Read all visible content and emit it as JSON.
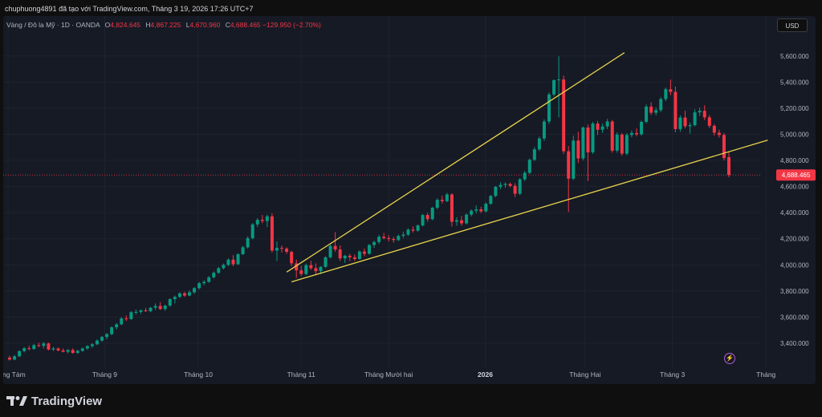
{
  "header": {
    "text": "chuphuong4891 đã tạo với TradingView.com, Tháng 3 19, 2026 17:26 UTC+7"
  },
  "legend": {
    "symbol": "Vàng / Đô la Mỹ · 1D · OANDA",
    "o_label": "O",
    "o_value": "4,824.645",
    "h_label": "H",
    "h_value": "4,867.225",
    "l_label": "L",
    "l_value": "4,670.960",
    "c_label": "C",
    "c_value": "4,688.465",
    "change": "−129.950 (−2.70%)"
  },
  "toolbar": {
    "currency": "USD"
  },
  "footer": {
    "brand": "TradingView"
  },
  "colors": {
    "up": "#089981",
    "down": "#f23645",
    "trendline": "#e8d44d",
    "price_line": "#f23645"
  },
  "chart_data": {
    "type": "candlestick",
    "title": "Vàng / Đô la Mỹ · 1D · OANDA",
    "y_range": [
      3265,
      5660
    ],
    "y_ticks": [
      3400,
      3600,
      3800,
      4000,
      4200,
      4400,
      4600,
      4800,
      5000,
      5200,
      5400,
      5600
    ],
    "y_tick_labels": [
      "3,400.000",
      "3,600.000",
      "3,800.000",
      "4,000.000",
      "4,200.000",
      "4,400.000",
      "4,600.000",
      "4,800.000",
      "5,000.000",
      "5,200.000",
      "5,400.000",
      "5,600.000"
    ],
    "x_labels": [
      {
        "text": "Tháng Tám",
        "at": "2025-08-01",
        "bold": false
      },
      {
        "text": "Tháng 9",
        "at": "2025-09-01",
        "bold": false
      },
      {
        "text": "Tháng 10",
        "at": "2025-10-01",
        "bold": false
      },
      {
        "text": "Tháng 11",
        "at": "2025-11-03",
        "bold": false
      },
      {
        "text": "Tháng Mười hai",
        "at": "2025-12-01",
        "bold": false
      },
      {
        "text": "2026",
        "at": "2026-01-01",
        "bold": true
      },
      {
        "text": "Tháng Hai",
        "at": "2026-02-02",
        "bold": false
      },
      {
        "text": "Tháng 3",
        "at": "2026-03-02",
        "bold": false
      },
      {
        "text": "Tháng",
        "at": "2026-04-01",
        "bold": false
      }
    ],
    "x_range": [
      "2025-08-01",
      "2026-04-03"
    ],
    "current_price": 4688.465,
    "current_price_label": "4,688.465",
    "candles": [
      {
        "o": 3290,
        "h": 3305,
        "l": 3268,
        "c": 3275
      },
      {
        "o": 3275,
        "h": 3310,
        "l": 3270,
        "c": 3300
      },
      {
        "o": 3300,
        "h": 3345,
        "l": 3295,
        "c": 3340
      },
      {
        "o": 3340,
        "h": 3370,
        "l": 3330,
        "c": 3362
      },
      {
        "o": 3362,
        "h": 3380,
        "l": 3345,
        "c": 3356
      },
      {
        "o": 3356,
        "h": 3395,
        "l": 3350,
        "c": 3385
      },
      {
        "o": 3385,
        "h": 3405,
        "l": 3370,
        "c": 3380
      },
      {
        "o": 3380,
        "h": 3410,
        "l": 3360,
        "c": 3398
      },
      {
        "o": 3398,
        "h": 3405,
        "l": 3345,
        "c": 3352
      },
      {
        "o": 3352,
        "h": 3372,
        "l": 3340,
        "c": 3360
      },
      {
        "o": 3360,
        "h": 3368,
        "l": 3338,
        "c": 3345
      },
      {
        "o": 3345,
        "h": 3360,
        "l": 3330,
        "c": 3335
      },
      {
        "o": 3335,
        "h": 3355,
        "l": 3322,
        "c": 3348
      },
      {
        "o": 3348,
        "h": 3360,
        "l": 3320,
        "c": 3326
      },
      {
        "o": 3326,
        "h": 3350,
        "l": 3318,
        "c": 3342
      },
      {
        "o": 3342,
        "h": 3368,
        "l": 3335,
        "c": 3360
      },
      {
        "o": 3360,
        "h": 3385,
        "l": 3350,
        "c": 3378
      },
      {
        "o": 3378,
        "h": 3400,
        "l": 3365,
        "c": 3392
      },
      {
        "o": 3392,
        "h": 3430,
        "l": 3385,
        "c": 3420
      },
      {
        "o": 3420,
        "h": 3455,
        "l": 3412,
        "c": 3448
      },
      {
        "o": 3448,
        "h": 3478,
        "l": 3430,
        "c": 3470
      },
      {
        "o": 3470,
        "h": 3530,
        "l": 3462,
        "c": 3522
      },
      {
        "o": 3522,
        "h": 3555,
        "l": 3505,
        "c": 3545
      },
      {
        "o": 3545,
        "h": 3600,
        "l": 3538,
        "c": 3590
      },
      {
        "o": 3590,
        "h": 3612,
        "l": 3570,
        "c": 3585
      },
      {
        "o": 3585,
        "h": 3645,
        "l": 3580,
        "c": 3638
      },
      {
        "o": 3638,
        "h": 3658,
        "l": 3620,
        "c": 3640
      },
      {
        "o": 3640,
        "h": 3660,
        "l": 3625,
        "c": 3652
      },
      {
        "o": 3652,
        "h": 3670,
        "l": 3640,
        "c": 3645
      },
      {
        "o": 3645,
        "h": 3678,
        "l": 3638,
        "c": 3672
      },
      {
        "o": 3672,
        "h": 3705,
        "l": 3655,
        "c": 3685
      },
      {
        "o": 3685,
        "h": 3715,
        "l": 3655,
        "c": 3662
      },
      {
        "o": 3662,
        "h": 3695,
        "l": 3648,
        "c": 3688
      },
      {
        "o": 3688,
        "h": 3745,
        "l": 3680,
        "c": 3738
      },
      {
        "o": 3738,
        "h": 3765,
        "l": 3705,
        "c": 3755
      },
      {
        "o": 3755,
        "h": 3790,
        "l": 3745,
        "c": 3782
      },
      {
        "o": 3782,
        "h": 3795,
        "l": 3755,
        "c": 3765
      },
      {
        "o": 3765,
        "h": 3805,
        "l": 3760,
        "c": 3790
      },
      {
        "o": 3790,
        "h": 3830,
        "l": 3780,
        "c": 3822
      },
      {
        "o": 3822,
        "h": 3870,
        "l": 3812,
        "c": 3860
      },
      {
        "o": 3860,
        "h": 3882,
        "l": 3845,
        "c": 3870
      },
      {
        "o": 3870,
        "h": 3915,
        "l": 3862,
        "c": 3905
      },
      {
        "o": 3905,
        "h": 3950,
        "l": 3895,
        "c": 3940
      },
      {
        "o": 3940,
        "h": 3985,
        "l": 3930,
        "c": 3975
      },
      {
        "o": 3975,
        "h": 4010,
        "l": 3965,
        "c": 4000
      },
      {
        "o": 4000,
        "h": 4050,
        "l": 3990,
        "c": 4040
      },
      {
        "o": 4040,
        "h": 4075,
        "l": 3990,
        "c": 4005
      },
      {
        "o": 4005,
        "h": 4090,
        "l": 4000,
        "c": 4082
      },
      {
        "o": 4082,
        "h": 4145,
        "l": 4075,
        "c": 4135
      },
      {
        "o": 4135,
        "h": 4218,
        "l": 4125,
        "c": 4205
      },
      {
        "o": 4205,
        "h": 4320,
        "l": 4195,
        "c": 4310
      },
      {
        "o": 4310,
        "h": 4358,
        "l": 4290,
        "c": 4345
      },
      {
        "o": 4345,
        "h": 4382,
        "l": 4320,
        "c": 4336
      },
      {
        "o": 4336,
        "h": 4385,
        "l": 4290,
        "c": 4372
      },
      {
        "o": 4372,
        "h": 4395,
        "l": 4095,
        "c": 4110
      },
      {
        "o": 4110,
        "h": 4180,
        "l": 4030,
        "c": 4130
      },
      {
        "o": 4130,
        "h": 4148,
        "l": 4095,
        "c": 4125
      },
      {
        "o": 4125,
        "h": 4135,
        "l": 4085,
        "c": 4100
      },
      {
        "o": 4100,
        "h": 4108,
        "l": 3990,
        "c": 4012
      },
      {
        "o": 4012,
        "h": 4040,
        "l": 3900,
        "c": 3958
      },
      {
        "o": 3958,
        "h": 3992,
        "l": 3915,
        "c": 3930
      },
      {
        "o": 3930,
        "h": 4010,
        "l": 3920,
        "c": 3998
      },
      {
        "o": 3998,
        "h": 4032,
        "l": 3962,
        "c": 3975
      },
      {
        "o": 3975,
        "h": 4012,
        "l": 3922,
        "c": 3952
      },
      {
        "o": 3952,
        "h": 3990,
        "l": 3930,
        "c": 3985
      },
      {
        "o": 3985,
        "h": 4065,
        "l": 3978,
        "c": 4058
      },
      {
        "o": 4058,
        "h": 4155,
        "l": 4050,
        "c": 4145
      },
      {
        "o": 4145,
        "h": 4252,
        "l": 4100,
        "c": 4118
      },
      {
        "o": 4118,
        "h": 4150,
        "l": 4030,
        "c": 4050
      },
      {
        "o": 4050,
        "h": 4078,
        "l": 4015,
        "c": 4070
      },
      {
        "o": 4070,
        "h": 4085,
        "l": 4030,
        "c": 4058
      },
      {
        "o": 4058,
        "h": 4080,
        "l": 4030,
        "c": 4045
      },
      {
        "o": 4045,
        "h": 4110,
        "l": 4040,
        "c": 4102
      },
      {
        "o": 4102,
        "h": 4125,
        "l": 4065,
        "c": 4085
      },
      {
        "o": 4085,
        "h": 4160,
        "l": 4080,
        "c": 4152
      },
      {
        "o": 4152,
        "h": 4185,
        "l": 4130,
        "c": 4175
      },
      {
        "o": 4175,
        "h": 4230,
        "l": 4160,
        "c": 4215
      },
      {
        "o": 4215,
        "h": 4245,
        "l": 4195,
        "c": 4205
      },
      {
        "o": 4205,
        "h": 4228,
        "l": 4180,
        "c": 4198
      },
      {
        "o": 4198,
        "h": 4215,
        "l": 4170,
        "c": 4190
      },
      {
        "o": 4190,
        "h": 4232,
        "l": 4182,
        "c": 4222
      },
      {
        "o": 4222,
        "h": 4255,
        "l": 4205,
        "c": 4232
      },
      {
        "o": 4232,
        "h": 4280,
        "l": 4220,
        "c": 4270
      },
      {
        "o": 4270,
        "h": 4295,
        "l": 4248,
        "c": 4262
      },
      {
        "o": 4262,
        "h": 4310,
        "l": 4255,
        "c": 4302
      },
      {
        "o": 4302,
        "h": 4390,
        "l": 4295,
        "c": 4382
      },
      {
        "o": 4382,
        "h": 4398,
        "l": 4330,
        "c": 4350
      },
      {
        "o": 4350,
        "h": 4445,
        "l": 4342,
        "c": 4438
      },
      {
        "o": 4438,
        "h": 4510,
        "l": 4425,
        "c": 4498
      },
      {
        "o": 4498,
        "h": 4530,
        "l": 4470,
        "c": 4488
      },
      {
        "o": 4488,
        "h": 4552,
        "l": 4480,
        "c": 4540
      },
      {
        "o": 4540,
        "h": 4548,
        "l": 4295,
        "c": 4330
      },
      {
        "o": 4330,
        "h": 4365,
        "l": 4300,
        "c": 4342
      },
      {
        "o": 4342,
        "h": 4375,
        "l": 4300,
        "c": 4318
      },
      {
        "o": 4318,
        "h": 4395,
        "l": 4310,
        "c": 4385
      },
      {
        "o": 4385,
        "h": 4425,
        "l": 4372,
        "c": 4415
      },
      {
        "o": 4415,
        "h": 4455,
        "l": 4395,
        "c": 4425
      },
      {
        "o": 4425,
        "h": 4445,
        "l": 4398,
        "c": 4410
      },
      {
        "o": 4410,
        "h": 4478,
        "l": 4402,
        "c": 4468
      },
      {
        "o": 4468,
        "h": 4535,
        "l": 4460,
        "c": 4528
      },
      {
        "o": 4528,
        "h": 4605,
        "l": 4518,
        "c": 4598
      },
      {
        "o": 4598,
        "h": 4632,
        "l": 4580,
        "c": 4612
      },
      {
        "o": 4612,
        "h": 4632,
        "l": 4590,
        "c": 4620
      },
      {
        "o": 4620,
        "h": 4630,
        "l": 4595,
        "c": 4605
      },
      {
        "o": 4605,
        "h": 4625,
        "l": 4520,
        "c": 4545
      },
      {
        "o": 4545,
        "h": 4665,
        "l": 4535,
        "c": 4655
      },
      {
        "o": 4655,
        "h": 4720,
        "l": 4642,
        "c": 4705
      },
      {
        "o": 4705,
        "h": 4815,
        "l": 4695,
        "c": 4805
      },
      {
        "o": 4805,
        "h": 4902,
        "l": 4795,
        "c": 4885
      },
      {
        "o": 4885,
        "h": 4982,
        "l": 4872,
        "c": 4968
      },
      {
        "o": 4968,
        "h": 5115,
        "l": 4950,
        "c": 5098
      },
      {
        "o": 5098,
        "h": 5320,
        "l": 5080,
        "c": 5305
      },
      {
        "o": 5305,
        "h": 5420,
        "l": 5290,
        "c": 5415
      },
      {
        "o": 5415,
        "h": 5598,
        "l": 5130,
        "c": 5420
      },
      {
        "o": 5420,
        "h": 5450,
        "l": 4850,
        "c": 4870
      },
      {
        "o": 4870,
        "h": 4910,
        "l": 4405,
        "c": 4660
      },
      {
        "o": 4660,
        "h": 4990,
        "l": 4650,
        "c": 4952
      },
      {
        "o": 4952,
        "h": 5020,
        "l": 4780,
        "c": 4815
      },
      {
        "o": 4815,
        "h": 5060,
        "l": 4800,
        "c": 5052
      },
      {
        "o": 5052,
        "h": 5075,
        "l": 4642,
        "c": 4862
      },
      {
        "o": 4862,
        "h": 5095,
        "l": 4850,
        "c": 5082
      },
      {
        "o": 5082,
        "h": 5102,
        "l": 4995,
        "c": 5035
      },
      {
        "o": 5035,
        "h": 5082,
        "l": 5010,
        "c": 5060
      },
      {
        "o": 5060,
        "h": 5118,
        "l": 5040,
        "c": 5098
      },
      {
        "o": 5098,
        "h": 5110,
        "l": 4860,
        "c": 4875
      },
      {
        "o": 4875,
        "h": 5015,
        "l": 4860,
        "c": 4998
      },
      {
        "o": 4998,
        "h": 5010,
        "l": 4835,
        "c": 4852
      },
      {
        "o": 4852,
        "h": 5010,
        "l": 4840,
        "c": 4995
      },
      {
        "o": 4995,
        "h": 5030,
        "l": 4978,
        "c": 5010
      },
      {
        "o": 5010,
        "h": 5045,
        "l": 4985,
        "c": 5000
      },
      {
        "o": 5000,
        "h": 5105,
        "l": 4990,
        "c": 5095
      },
      {
        "o": 5095,
        "h": 5228,
        "l": 5085,
        "c": 5212
      },
      {
        "o": 5212,
        "h": 5245,
        "l": 5148,
        "c": 5165
      },
      {
        "o": 5165,
        "h": 5205,
        "l": 5145,
        "c": 5185
      },
      {
        "o": 5185,
        "h": 5285,
        "l": 5170,
        "c": 5270
      },
      {
        "o": 5270,
        "h": 5358,
        "l": 5255,
        "c": 5345
      },
      {
        "o": 5345,
        "h": 5420,
        "l": 5300,
        "c": 5325
      },
      {
        "o": 5325,
        "h": 5365,
        "l": 5015,
        "c": 5040
      },
      {
        "o": 5040,
        "h": 5145,
        "l": 5020,
        "c": 5128
      },
      {
        "o": 5128,
        "h": 5180,
        "l": 5045,
        "c": 5062
      },
      {
        "o": 5062,
        "h": 5090,
        "l": 5005,
        "c": 5070
      },
      {
        "o": 5070,
        "h": 5192,
        "l": 5060,
        "c": 5168
      },
      {
        "o": 5168,
        "h": 5205,
        "l": 5140,
        "c": 5180
      },
      {
        "o": 5180,
        "h": 5222,
        "l": 5110,
        "c": 5130
      },
      {
        "o": 5130,
        "h": 5148,
        "l": 5048,
        "c": 5065
      },
      {
        "o": 5065,
        "h": 5078,
        "l": 4990,
        "c": 5012
      },
      {
        "o": 5012,
        "h": 5035,
        "l": 4975,
        "c": 4995
      },
      {
        "o": 4995,
        "h": 5010,
        "l": 4800,
        "c": 4818
      },
      {
        "o": 4824.645,
        "h": 4867.225,
        "l": 4670.96,
        "c": 4688.465
      }
    ],
    "trendlines": [
      {
        "name": "upper",
        "p1": {
          "bar": 57,
          "price": 3945
        },
        "p2": {
          "bar": 126.5,
          "price": 5625
        }
      },
      {
        "name": "lower",
        "p1": {
          "bar": 58,
          "price": 3870
        },
        "p2": {
          "bar": 156,
          "price": 4955
        }
      }
    ]
  }
}
